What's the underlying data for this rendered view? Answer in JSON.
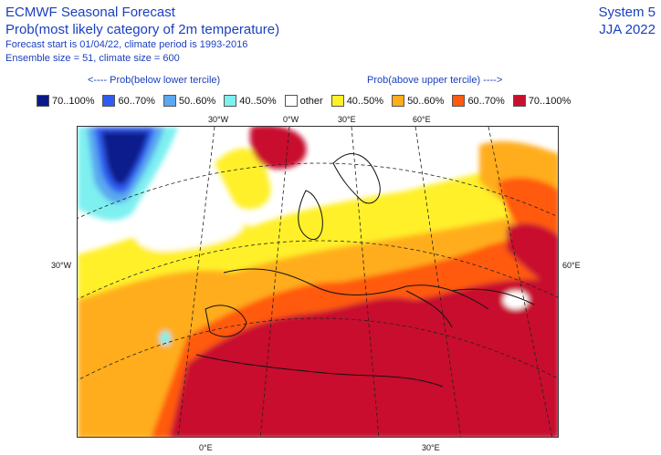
{
  "header": {
    "line1": "ECMWF Seasonal Forecast",
    "line2": "Prob(most likely category of 2m temperature)",
    "line3": "Forecast start is 01/04/22, climate period is 1993-2016",
    "line4": "Ensemble size = 51, climate size = 600",
    "system": "System 5",
    "season": "JJA 2022"
  },
  "legend": {
    "below_label": "<---- Prob(below lower tercile)",
    "above_label": "Prob(above upper tercile) ---->",
    "items": [
      {
        "label": "70..100%",
        "color": "#0a1a8c"
      },
      {
        "label": "60..70%",
        "color": "#2f5cf0"
      },
      {
        "label": "50..60%",
        "color": "#5aa8f0"
      },
      {
        "label": "40..50%",
        "color": "#7ef0f0"
      },
      {
        "label": "other",
        "color": "#ffffff"
      },
      {
        "label": "40..50%",
        "color": "#fff02a"
      },
      {
        "label": "50..60%",
        "color": "#ffad1a"
      },
      {
        "label": "60..70%",
        "color": "#ff5a0e"
      },
      {
        "label": "70..100%",
        "color": "#c8102e"
      }
    ]
  },
  "map_labels": {
    "top_30w": "30°W",
    "top_0": "0°W",
    "top_30e": "30°E",
    "top_60e": "60°E",
    "left_30w": "30°W",
    "right_60e": "60°E",
    "bottom_0e": "0°E",
    "bottom_30e": "30°E"
  }
}
